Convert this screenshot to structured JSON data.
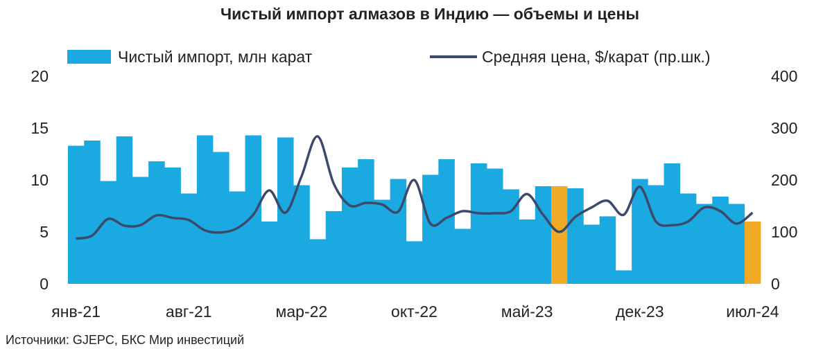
{
  "chart_data": {
    "type": "bar_line",
    "title": "Чистый импорт алмазов в Индию — объемы и цены",
    "source": "Источники: GJEPC, БКС Мир инвестиций",
    "categories": [
      "янв-21",
      null,
      null,
      null,
      null,
      null,
      null,
      "авг-21",
      null,
      null,
      null,
      null,
      null,
      null,
      "мар-22",
      null,
      null,
      null,
      null,
      null,
      null,
      "окт-22",
      null,
      null,
      null,
      null,
      null,
      null,
      "май-23",
      null,
      null,
      null,
      null,
      null,
      null,
      "дек-23",
      null,
      null,
      null,
      null,
      null,
      null,
      "июл-24"
    ],
    "series": [
      {
        "name": "Чистый импорт, млн карат",
        "type": "bar",
        "color": "#1ba9e1",
        "highlight_color": "#f0aa26",
        "highlight": [
          30,
          42
        ],
        "values": [
          13.3,
          13.8,
          9.9,
          14.2,
          10.3,
          11.8,
          11.2,
          8.7,
          14.3,
          12.7,
          8.9,
          14.3,
          6.0,
          14.1,
          9.5,
          4.3,
          7.0,
          11.2,
          12.0,
          8.1,
          10.1,
          4.1,
          10.5,
          12.0,
          5.3,
          11.6,
          11.1,
          9.1,
          6.2,
          9.4,
          9.4,
          9.2,
          5.7,
          6.5,
          1.3,
          10.1,
          9.5,
          11.6,
          8.7,
          7.7,
          8.4,
          7.7,
          6.0
        ]
      },
      {
        "name": "Средняя цена, $/карат (пр.шк.)",
        "type": "line",
        "axis": "y2",
        "color": "#3b4a6b",
        "values": [
          87,
          93,
          125,
          112,
          113,
          132,
          127,
          123,
          103,
          99,
          107,
          133,
          180,
          137,
          207,
          284,
          193,
          151,
          156,
          153,
          139,
          200,
          116,
          127,
          140,
          136,
          136,
          140,
          173,
          133,
          100,
          129,
          147,
          160,
          133,
          187,
          120,
          113,
          120,
          147,
          140,
          116,
          137
        ]
      }
    ],
    "ylim": [
      0,
      20
    ],
    "yticks": [
      0,
      5,
      10,
      15,
      20
    ],
    "y2lim": [
      0,
      400
    ],
    "y2ticks": [
      0,
      100,
      200,
      300,
      400
    ]
  }
}
